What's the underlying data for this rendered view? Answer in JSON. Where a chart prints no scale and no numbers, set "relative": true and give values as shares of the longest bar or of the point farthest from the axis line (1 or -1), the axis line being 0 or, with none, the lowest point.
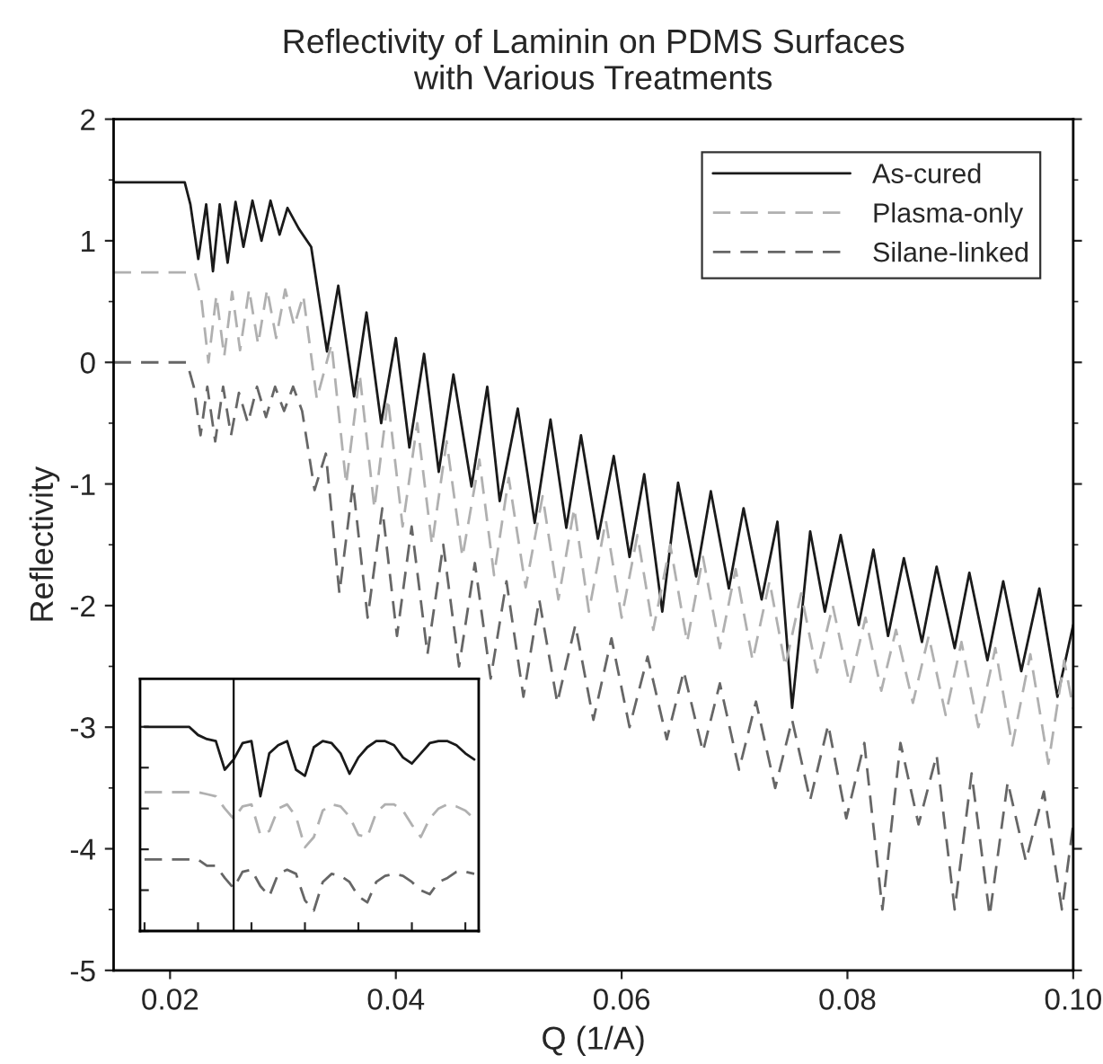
{
  "chart_data": [
    {
      "type": "line",
      "title": "Reflectivity of Laminin on PDMS Surfaces\nwith Various Treatments",
      "xlabel": "Q (1/A)",
      "ylabel": "Reflectivity",
      "xlim": [
        0.015,
        0.1
      ],
      "xticks": [
        0.02,
        0.04,
        0.06,
        0.08,
        {
          "value": 0.1,
          "label": "0.10"
        }
      ],
      "ylim": [
        -5,
        2
      ],
      "yticks": [
        -5,
        -4,
        -3,
        -2,
        -1,
        0,
        1,
        2
      ],
      "grid": false,
      "legend": "top right",
      "marker": "none",
      "series": [
        {
          "name": "As-cured",
          "color": "#1a1a1a",
          "line_style": "solid",
          "x": [
            0.015,
            0.0213,
            0.0218,
            0.0225,
            0.0232,
            0.0238,
            0.0244,
            0.0251,
            0.0258,
            0.0265,
            0.0273,
            0.0281,
            0.0289,
            0.0297,
            0.0304,
            0.0314,
            0.0325,
            0.0339,
            0.0349,
            0.0363,
            0.0374,
            0.0387,
            0.04,
            0.0412,
            0.0425,
            0.0438,
            0.0451,
            0.0467,
            0.0481,
            0.0492,
            0.0508,
            0.0523,
            0.0537,
            0.0551,
            0.0564,
            0.0579,
            0.0593,
            0.0607,
            0.062,
            0.0636,
            0.065,
            0.0666,
            0.0679,
            0.0695,
            0.0708,
            0.0724,
            0.0738,
            0.0751,
            0.0767,
            0.078,
            0.0794,
            0.081,
            0.0823,
            0.0836,
            0.085,
            0.0866,
            0.0879,
            0.0895,
            0.0908,
            0.0924,
            0.0938,
            0.0954,
            0.097,
            0.0986,
            0.1
          ],
          "values": [
            1.48,
            1.48,
            1.3,
            0.85,
            1.3,
            0.75,
            1.3,
            0.82,
            1.32,
            0.95,
            1.33,
            1.0,
            1.33,
            1.05,
            1.27,
            1.1,
            0.95,
            0.09,
            0.63,
            -0.28,
            0.41,
            -0.5,
            0.2,
            -0.7,
            0.07,
            -0.9,
            -0.1,
            -1.02,
            -0.2,
            -1.14,
            -0.38,
            -1.32,
            -0.47,
            -1.36,
            -0.6,
            -1.45,
            -0.77,
            -1.6,
            -0.92,
            -2.05,
            -0.99,
            -1.76,
            -1.06,
            -1.86,
            -1.2,
            -1.95,
            -1.31,
            -2.84,
            -1.39,
            -2.05,
            -1.42,
            -2.16,
            -1.54,
            -2.25,
            -1.61,
            -2.3,
            -1.68,
            -2.35,
            -1.73,
            -2.45,
            -1.8,
            -2.54,
            -1.86,
            -2.75,
            -2.16
          ]
        },
        {
          "name": "Plasma-only",
          "color": "#b0b0b0",
          "line_style": "dashed",
          "x": [
            0.015,
            0.0222,
            0.0228,
            0.0234,
            0.0241,
            0.0248,
            0.0255,
            0.0262,
            0.027,
            0.0278,
            0.0286,
            0.0294,
            0.0302,
            0.031,
            0.0318,
            0.033,
            0.0343,
            0.0356,
            0.0368,
            0.0381,
            0.0393,
            0.0406,
            0.0419,
            0.0432,
            0.0445,
            0.0459,
            0.0474,
            0.0487,
            0.05,
            0.0515,
            0.053,
            0.0544,
            0.0558,
            0.0571,
            0.0586,
            0.06,
            0.0614,
            0.0628,
            0.0643,
            0.0658,
            0.0672,
            0.0687,
            0.0701,
            0.0716,
            0.0731,
            0.0745,
            0.0759,
            0.0773,
            0.0787,
            0.0802,
            0.0816,
            0.083,
            0.0843,
            0.0858,
            0.0872,
            0.0887,
            0.0901,
            0.0916,
            0.0931,
            0.0946,
            0.0962,
            0.0978,
            0.0992,
            0.1
          ],
          "values": [
            0.74,
            0.74,
            0.5,
            0.0,
            0.55,
            0.05,
            0.58,
            0.1,
            0.6,
            0.15,
            0.6,
            0.2,
            0.6,
            0.3,
            0.55,
            -0.3,
            0.15,
            -1.0,
            -0.1,
            -1.2,
            -0.3,
            -1.35,
            -0.5,
            -1.5,
            -0.65,
            -1.6,
            -0.8,
            -1.75,
            -0.95,
            -1.85,
            -1.1,
            -1.95,
            -1.2,
            -2.05,
            -1.3,
            -2.1,
            -1.42,
            -2.2,
            -1.5,
            -2.3,
            -1.6,
            -2.35,
            -1.7,
            -2.45,
            -1.8,
            -2.5,
            -1.9,
            -2.55,
            -2.0,
            -2.65,
            -2.1,
            -2.7,
            -2.2,
            -2.8,
            -2.25,
            -2.9,
            -2.3,
            -3.0,
            -2.35,
            -3.15,
            -2.4,
            -3.3,
            -2.45,
            -2.85
          ]
        },
        {
          "name": "Silane-linked",
          "color": "#666666",
          "line_style": "dashed",
          "x": [
            0.015,
            0.0215,
            0.0221,
            0.0227,
            0.0233,
            0.024,
            0.0247,
            0.0254,
            0.0261,
            0.0269,
            0.0277,
            0.0285,
            0.0293,
            0.0301,
            0.0309,
            0.0317,
            0.0328,
            0.0338,
            0.035,
            0.0362,
            0.0375,
            0.0388,
            0.0401,
            0.0414,
            0.0428,
            0.0442,
            0.0456,
            0.047,
            0.0484,
            0.0498,
            0.0513,
            0.0527,
            0.0543,
            0.0559,
            0.0575,
            0.0591,
            0.0607,
            0.0623,
            0.064,
            0.0655,
            0.0672,
            0.0687,
            0.0704,
            0.0719,
            0.0736,
            0.0751,
            0.0767,
            0.0783,
            0.0799,
            0.0815,
            0.0831,
            0.0847,
            0.0863,
            0.0879,
            0.0895,
            0.091,
            0.0926,
            0.0942,
            0.0958,
            0.0974,
            0.099,
            0.1
          ],
          "values": [
            0,
            0,
            -0.2,
            -0.6,
            -0.2,
            -0.65,
            -0.2,
            -0.6,
            -0.25,
            -0.5,
            -0.2,
            -0.45,
            -0.2,
            -0.4,
            -0.2,
            -0.4,
            -1.05,
            -0.75,
            -1.9,
            -1.0,
            -2.1,
            -1.2,
            -2.25,
            -1.35,
            -2.4,
            -1.5,
            -2.5,
            -1.65,
            -2.6,
            -1.8,
            -2.75,
            -1.95,
            -2.8,
            -2.16,
            -2.94,
            -2.27,
            -3.0,
            -2.42,
            -3.1,
            -2.54,
            -3.2,
            -2.64,
            -3.35,
            -2.79,
            -3.5,
            -2.94,
            -3.6,
            -2.98,
            -3.75,
            -3.13,
            -4.5,
            -3.13,
            -3.8,
            -3.23,
            -4.5,
            -3.38,
            -4.55,
            -3.45,
            -4.1,
            -3.53,
            -4.5,
            -3.8
          ]
        }
      ]
    },
    {
      "type": "line",
      "relative": true,
      "grid": false,
      "marker": "none",
      "categories": [
        null,
        null,
        null,
        null,
        null,
        null,
        null,
        null,
        null,
        null,
        null,
        null,
        null,
        null,
        null,
        null,
        null,
        null,
        null,
        null,
        null,
        null,
        null,
        null,
        null,
        null,
        null,
        null,
        null,
        null,
        null,
        null,
        null,
        null,
        null,
        null,
        null,
        null
      ],
      "series": [
        {
          "color": "#1a1a1a",
          "line_style": "solid",
          "values": [
            1,
            1,
            1,
            1,
            1,
            1.0,
            0.96,
            0.94,
            0.93,
            0.79,
            0.84,
            0.92,
            0.93,
            0.66,
            0.87,
            0.91,
            0.93,
            0.79,
            0.76,
            0.9,
            0.93,
            0.92,
            0.87,
            0.77,
            0.85,
            0.9,
            0.93,
            0.93,
            0.91,
            0.85,
            0.82,
            0.87,
            0.92,
            0.93,
            0.93,
            0.91,
            0.87,
            0.84
          ]
        },
        {
          "color": "#b0b0b0",
          "line_style": "dashed",
          "values": [
            0.68,
            0.68,
            0.68,
            0.68,
            0.68,
            0.68,
            0.68,
            0.67,
            0.66,
            0.6,
            0.55,
            0.61,
            0.62,
            0.47,
            0.49,
            0.6,
            0.62,
            0.56,
            0.41,
            0.46,
            0.59,
            0.62,
            0.61,
            0.56,
            0.47,
            0.46,
            0.58,
            0.62,
            0.62,
            0.59,
            0.52,
            0.46,
            0.55,
            0.6,
            0.62,
            0.61,
            0.59,
            0.55
          ]
        },
        {
          "color": "#666666",
          "line_style": "dashed",
          "values": [
            0.35,
            0.35,
            0.35,
            0.35,
            0.35,
            0.35,
            0.35,
            0.32,
            0.32,
            0.26,
            0.21,
            0.29,
            0.3,
            0.22,
            0.17,
            0.28,
            0.3,
            0.28,
            0.15,
            0.1,
            0.24,
            0.28,
            0.27,
            0.24,
            0.17,
            0.14,
            0.24,
            0.27,
            0.28,
            0.27,
            0.24,
            0.2,
            0.18,
            0.24,
            0.26,
            0.29,
            0.29,
            0.28
          ]
        }
      ]
    }
  ]
}
